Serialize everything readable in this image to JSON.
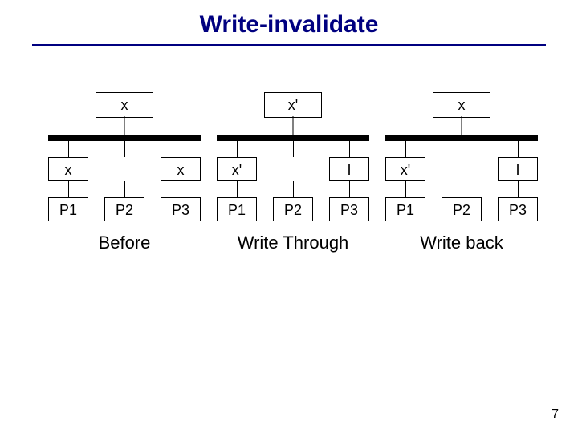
{
  "title": "Write-invalidate",
  "page_number": "7",
  "colors": {
    "title_color": "#000080",
    "rule_color": "#000080",
    "bus_color": "#000000",
    "box_border": "#000000",
    "background": "#ffffff"
  },
  "groups": [
    {
      "mem": "x",
      "caches": {
        "left": "x",
        "right": "x"
      },
      "procs": [
        "P1",
        "P2",
        "P3"
      ],
      "caption": "Before"
    },
    {
      "mem": "x'",
      "caches": {
        "left": "x'",
        "right": "I"
      },
      "procs": [
        "P1",
        "P2",
        "P3"
      ],
      "caption": "Write Through"
    },
    {
      "mem": "x",
      "caches": {
        "left": "x'",
        "right": "I"
      },
      "procs": [
        "P1",
        "P2",
        "P3"
      ],
      "caption": "Write back"
    }
  ]
}
